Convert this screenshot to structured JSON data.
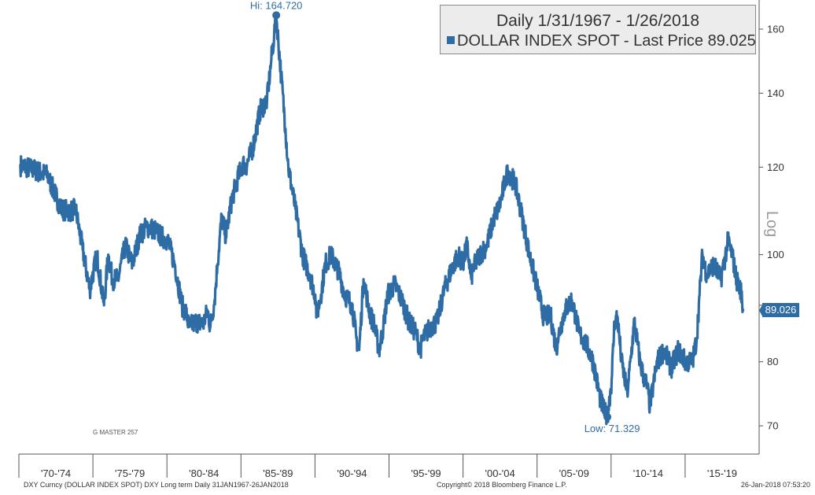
{
  "legend": {
    "title": "Daily 1/31/1967 - 1/26/2018",
    "entry": "DOLLAR INDEX SPOT - Last Price 89.025"
  },
  "annotations": {
    "high": "Hi: 164.720",
    "low": "Low: 71.329",
    "last_tag": "89.026"
  },
  "axis": {
    "y_scale_label": "Log"
  },
  "watermark": "G MASTER 257",
  "footer": {
    "left": "DXY Curncy (DOLLAR INDEX SPOT) DXY Long term   Daily 31JAN1967-26JAN2018",
    "center": "Copyright© 2018 Bloomberg Finance L.P.",
    "right": "26-Jan-2018 07:53:20"
  },
  "colors": {
    "series": "#2e6ca5",
    "legend_bg": "#ececec"
  },
  "chart_data": {
    "type": "line",
    "y_scale": "log",
    "ylim": [
      66,
      170
    ],
    "y_ticks": [
      70,
      80,
      90,
      100,
      120,
      140,
      160
    ],
    "y_tick_labels": [
      "70",
      "80",
      "",
      "100",
      "120",
      "140",
      "160"
    ],
    "x_tick_labels": [
      "'70-'74",
      "'75-'79",
      "'80-'84",
      "'85-'89",
      "'90-'94",
      "'95-'99",
      "'00-'04",
      "'05-'09",
      "'10-'14",
      "'15-'19"
    ],
    "grid": false,
    "legend_position": "top-right",
    "series": [
      {
        "name": "DOLLAR INDEX SPOT - Last Price 89.025",
        "x": [
          1967.1,
          1968.0,
          1969.0,
          1970.0,
          1970.6,
          1971.0,
          1971.5,
          1972.0,
          1972.5,
          1973.0,
          1973.3,
          1973.6,
          1974.0,
          1974.5,
          1975.0,
          1975.5,
          1976.0,
          1976.5,
          1977.0,
          1977.5,
          1978.0,
          1978.5,
          1978.8,
          1979.0,
          1979.5,
          1980.0,
          1980.3,
          1980.5,
          1980.8,
          1981.0,
          1981.3,
          1981.6,
          1982.0,
          1982.5,
          1982.8,
          1983.0,
          1983.5,
          1984.0,
          1984.5,
          1984.8,
          1985.0,
          1985.15,
          1985.5,
          1985.8,
          1986.0,
          1986.5,
          1987.0,
          1987.5,
          1987.9,
          1988.0,
          1988.3,
          1988.6,
          1989.0,
          1989.5,
          1989.8,
          1990.0,
          1990.5,
          1990.8,
          1991.0,
          1991.3,
          1991.5,
          1991.8,
          1992.0,
          1992.4,
          1992.7,
          1993.0,
          1993.5,
          1994.0,
          1994.5,
          1995.0,
          1995.3,
          1995.5,
          1996.0,
          1996.5,
          1997.0,
          1997.5,
          1998.0,
          1998.3,
          1998.6,
          1998.9,
          1999.0,
          1999.5,
          2000.0,
          2000.5,
          2000.8,
          2001.0,
          2001.3,
          2001.5,
          2002.0,
          2002.5,
          2003.0,
          2003.5,
          2004.0,
          2004.5,
          2004.9,
          2005.0,
          2005.5,
          2006.0,
          2006.5,
          2007.0,
          2007.5,
          2008.0,
          2008.3,
          2008.5,
          2008.8,
          2009.0,
          2009.2,
          2009.5,
          2009.9,
          2010.0,
          2010.4,
          2010.8,
          2011.0,
          2011.3,
          2011.5,
          2011.8,
          2012.0,
          2012.5,
          2013.0,
          2013.5,
          2014.0,
          2014.5,
          2014.8,
          2015.0,
          2015.2,
          2015.5,
          2016.0,
          2016.5,
          2016.9,
          2017.0,
          2017.3,
          2017.6,
          2017.9,
          2018.07
        ],
        "y": [
          120.5,
          119.5,
          118.0,
          110.0,
          109.5,
          110.0,
          101.0,
          93.0,
          100.0,
          90.0,
          100.0,
          95.0,
          95.0,
          102.0,
          98.0,
          104.0,
          106.0,
          105.5,
          104.0,
          103.0,
          98.0,
          90.0,
          88.5,
          86.0,
          87.0,
          86.5,
          89.0,
          86.0,
          91.0,
          98.0,
          108.0,
          104.0,
          112.0,
          118.0,
          121.0,
          120.0,
          125.0,
          135.0,
          138.0,
          150.0,
          158.0,
          164.7,
          145.0,
          130.0,
          120.0,
          110.0,
          100.0,
          96.0,
          92.0,
          88.0,
          92.0,
          98.0,
          100.0,
          97.0,
          94.0,
          92.0,
          90.0,
          84.0,
          82.0,
          95.0,
          92.0,
          88.0,
          87.0,
          82.0,
          86.0,
          92.0,
          94.0,
          91.0,
          87.0,
          85.0,
          82.0,
          84.0,
          86.0,
          87.0,
          93.0,
          97.0,
          100.0,
          98.0,
          102.0,
          95.0,
          97.0,
          100.0,
          102.0,
          108.0,
          110.0,
          112.0,
          117.0,
          119.0,
          116.0,
          108.0,
          100.0,
          94.0,
          88.0,
          88.0,
          82.0,
          84.0,
          89.0,
          91.0,
          85.0,
          83.0,
          80.0,
          74.0,
          72.0,
          71.3,
          77.0,
          87.0,
          88.0,
          80.0,
          75.0,
          77.0,
          87.0,
          80.0,
          78.0,
          76.0,
          73.0,
          77.0,
          80.0,
          82.0,
          79.0,
          82.0,
          80.0,
          80.0,
          84.0,
          92.0,
          100.0,
          96.0,
          98.0,
          95.0,
          101.0,
          103.0,
          100.0,
          95.0,
          93.0,
          89.025
        ]
      }
    ]
  }
}
